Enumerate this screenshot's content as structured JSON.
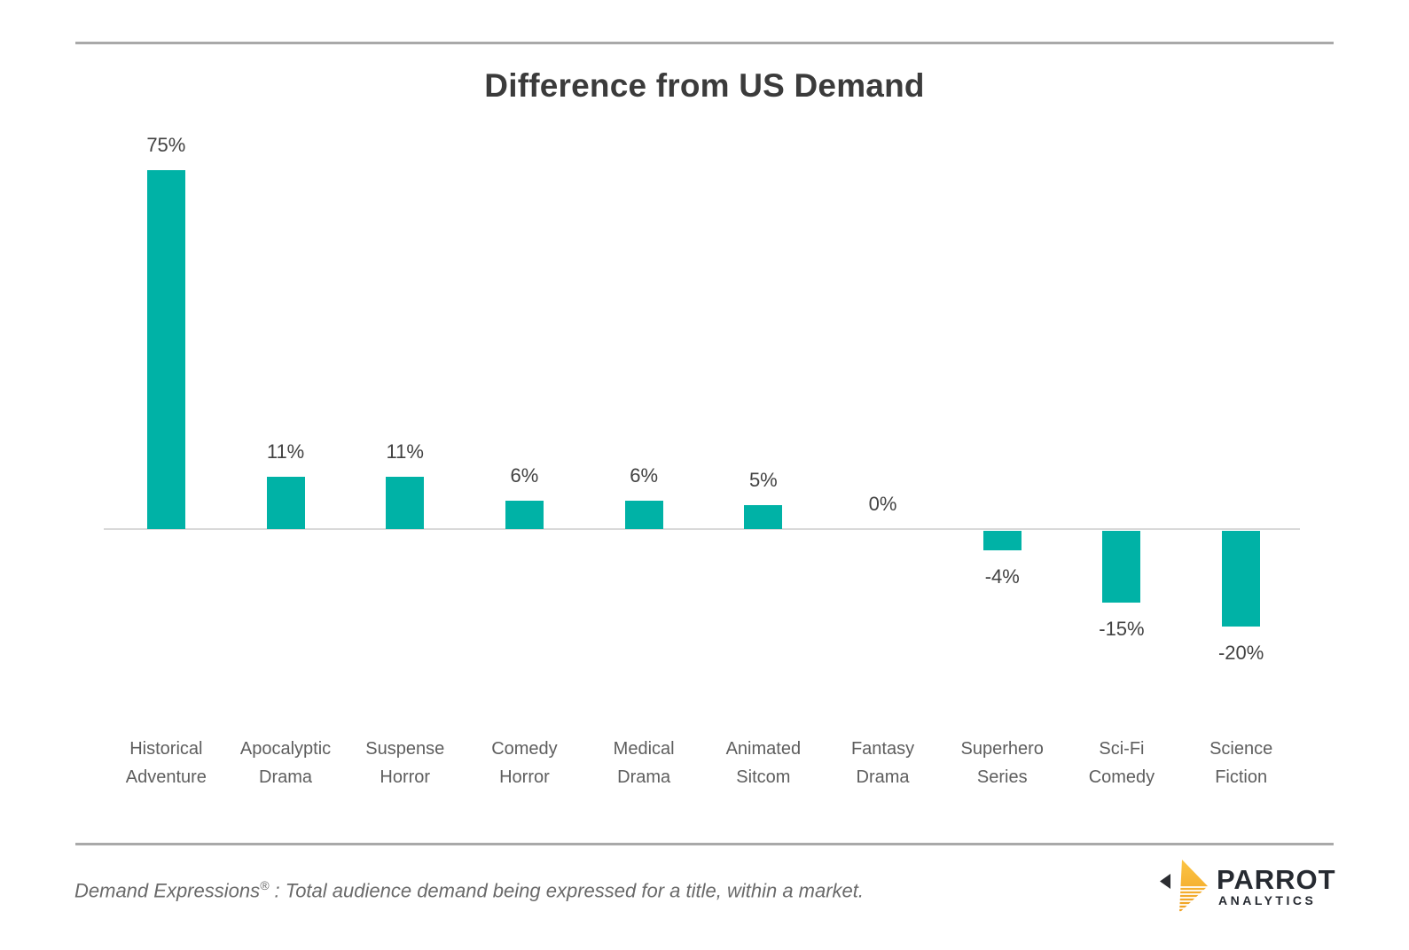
{
  "chart_data": {
    "type": "bar",
    "title": "Difference from US Demand",
    "categories": [
      "Historical Adventure",
      "Apocalyptic Drama",
      "Suspense Horror",
      "Comedy Horror",
      "Medical Drama",
      "Animated Sitcom",
      "Fantasy Drama",
      "Superhero Series",
      "Sci-Fi Comedy",
      "Science Fiction"
    ],
    "values": [
      75,
      11,
      11,
      6,
      6,
      5,
      0,
      -4,
      -15,
      -20
    ],
    "value_labels": [
      "75%",
      "11%",
      "11%",
      "6%",
      "6%",
      "5%",
      "0%",
      "-4%",
      "-15%",
      "-20%"
    ],
    "xlabel": "",
    "ylabel": "",
    "ylim": [
      -25,
      80
    ],
    "grid": false,
    "legend": "none",
    "axis_ticks_shown": false,
    "zero_baseline_shown": true
  },
  "footer": {
    "note_term": "Demand Expressions",
    "note_reg": "®",
    "note_rest": " :  Total audience demand being expressed for a title, within a market.",
    "logo": {
      "brand": "PARROT",
      "subtitle": "ANALYTICS"
    }
  },
  "colors": {
    "bar": "#00B2A6",
    "title_text": "#3b3b3b",
    "value_label": "#424242",
    "category_label": "#5e5e5e",
    "divider_rule": "#a9a9a9",
    "zero_line": "#d9d9d9",
    "footnote_text": "#6a6a6a",
    "logo_text": "#262a31",
    "logo_gold_light": "#fcc545",
    "logo_gold_dark": "#ef9f20"
  }
}
